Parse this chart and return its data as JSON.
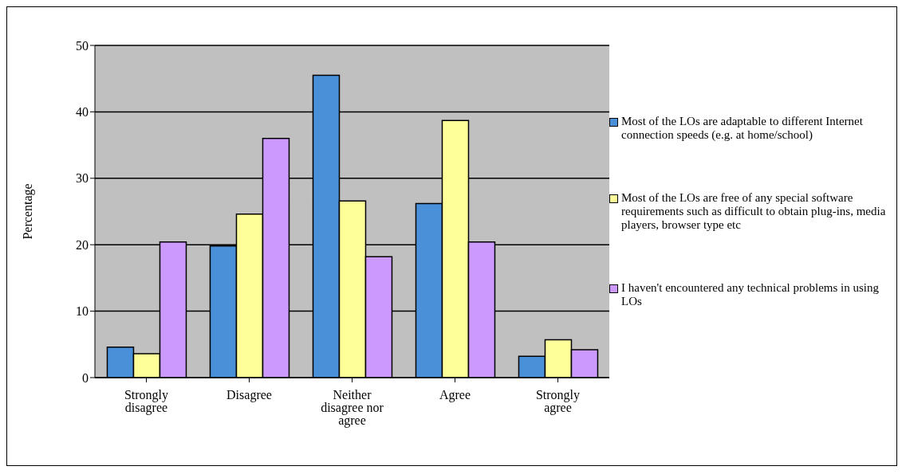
{
  "chart_data": {
    "type": "bar",
    "ylabel": "Percentage",
    "categories": [
      "Strongly disagree",
      "Disagree",
      "Neither disagree nor agree",
      "Agree",
      "Strongly agree"
    ],
    "series": [
      {
        "name": "Most of the LOs are adaptable to different Internet connection speeds (e.g. at home/school)",
        "color": "#4a90d9",
        "values": [
          4.6,
          19.8,
          45.5,
          26.2,
          3.2
        ]
      },
      {
        "name": "Most of the LOs are free of any special software requirements such as difficult to obtain plug-ins, media players, browser type etc",
        "color": "#ffff99",
        "values": [
          3.6,
          24.6,
          26.6,
          38.7,
          5.7
        ]
      },
      {
        "name": "I haven't encountered any technical problems in using LOs",
        "color": "#cc99ff",
        "values": [
          20.4,
          36.0,
          18.2,
          20.4,
          4.2
        ]
      }
    ],
    "ylim": [
      0,
      50
    ],
    "yticks": [
      0,
      10,
      20,
      30,
      40,
      50
    ],
    "grid": "y",
    "legend": "right"
  }
}
